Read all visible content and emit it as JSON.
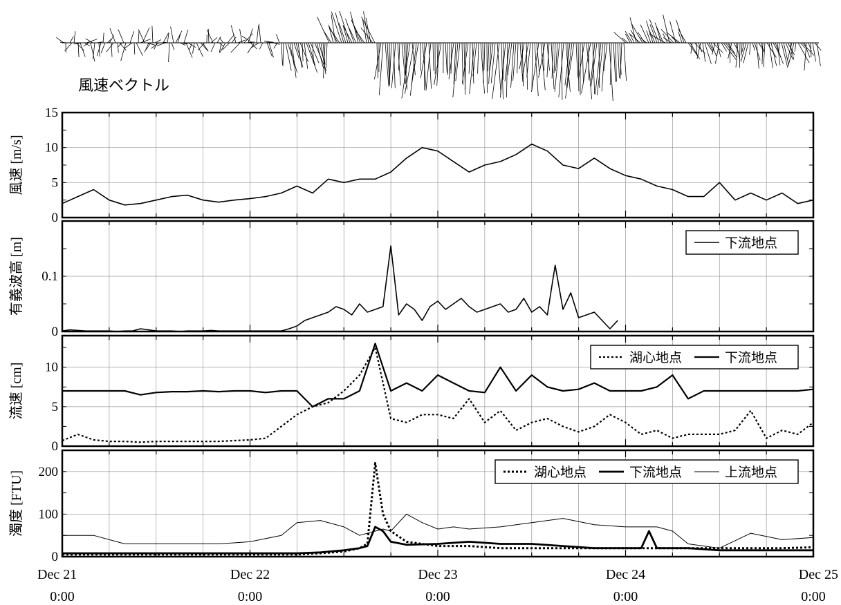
{
  "vector_label": "風速ベクトル",
  "x_ticks": [
    {
      "date": "Dec 21",
      "time": "0:00"
    },
    {
      "date": "Dec 22",
      "time": "0:00"
    },
    {
      "date": "Dec 23",
      "time": "0:00"
    },
    {
      "date": "Dec 24",
      "time": "0:00"
    },
    {
      "date": "Dec 25",
      "time": "0:00"
    }
  ],
  "chart_data": [
    {
      "type": "line",
      "ylabel": "風速 [m/s]",
      "ylim": [
        0,
        15
      ],
      "yticks": [
        0,
        5,
        10,
        15
      ],
      "xlim": [
        0,
        96
      ],
      "grid": true,
      "legend": null,
      "series": [
        {
          "name": "",
          "style": "solid",
          "width": 1.6,
          "x": [
            0,
            2,
            4,
            6,
            8,
            10,
            12,
            14,
            16,
            18,
            20,
            22,
            24,
            26,
            28,
            30,
            32,
            34,
            36,
            38,
            40,
            42,
            44,
            46,
            48,
            50,
            52,
            54,
            56,
            58,
            60,
            62,
            64,
            66,
            68,
            70,
            72,
            74,
            76,
            78,
            80,
            82,
            84,
            86,
            88,
            90,
            92,
            94,
            96
          ],
          "y": [
            2,
            3,
            4,
            2.5,
            1.8,
            2,
            2.5,
            3,
            3.2,
            2.5,
            2.2,
            2.5,
            2.7,
            3,
            3.5,
            4.5,
            3.5,
            5.5,
            5,
            5.5,
            5.5,
            6.5,
            8.5,
            10,
            9.5,
            8,
            6.5,
            7.5,
            8,
            9,
            10.5,
            9.5,
            7.5,
            7,
            8.5,
            7,
            6,
            5.5,
            4.5,
            4,
            3,
            3,
            5,
            2.5,
            3.5,
            2.5,
            3.5,
            2,
            2.5
          ]
        }
      ]
    },
    {
      "type": "line",
      "ylabel": "有義波高 [m]",
      "ylim": [
        0,
        0.2
      ],
      "yticks": [
        0,
        0.1
      ],
      "yticklabels": [
        "0",
        "0.1"
      ],
      "xlim": [
        0,
        96
      ],
      "grid": true,
      "legend": "top-right",
      "series": [
        {
          "name": "下流地点",
          "style": "solid",
          "width": 1.6,
          "x": [
            0,
            1,
            2,
            3,
            4,
            5,
            6,
            7,
            8,
            9,
            10,
            11,
            12,
            13,
            14,
            15,
            16,
            17,
            18,
            19,
            20,
            21,
            22,
            23,
            24,
            25,
            26,
            27,
            28,
            29,
            30,
            31,
            32,
            33,
            34,
            35,
            36,
            37,
            38,
            39,
            40,
            41,
            42,
            43,
            44,
            45,
            46,
            47,
            48,
            49,
            50,
            51,
            52,
            53,
            54,
            55,
            56,
            57,
            58,
            59,
            60,
            61,
            62,
            63,
            64,
            65,
            66,
            67,
            68,
            69,
            70,
            71
          ],
          "y": [
            0.001,
            0.003,
            0.002,
            0.001,
            0.001,
            0.001,
            0.001,
            0,
            0.001,
            0.001,
            0.005,
            0.003,
            0.001,
            0.001,
            0.001,
            0,
            0.001,
            0.001,
            0.001,
            0.002,
            0.001,
            0.001,
            0.001,
            0.001,
            0.001,
            0.001,
            0.001,
            0.001,
            0.001,
            0.005,
            0.01,
            0.02,
            0.025,
            0.03,
            0.035,
            0.045,
            0.04,
            0.03,
            0.05,
            0.035,
            0.04,
            0.045,
            0.155,
            0.03,
            0.05,
            0.04,
            0.02,
            0.045,
            0.055,
            0.04,
            0.05,
            0.06,
            0.045,
            0.035,
            0.04,
            0.045,
            0.05,
            0.035,
            0.04,
            0.06,
            0.035,
            0.045,
            0.03,
            0.12,
            0.04,
            0.07,
            0.025,
            0.03,
            0.035,
            0.02,
            0.005,
            0.02
          ]
        }
      ]
    },
    {
      "type": "line",
      "ylabel": "流速 [cm]",
      "ylim": [
        0,
        14
      ],
      "yticks": [
        0,
        5,
        10
      ],
      "xlim": [
        0,
        96
      ],
      "grid": true,
      "legend": "top-right",
      "series": [
        {
          "name": "湖心地点",
          "style": "dotted",
          "width": 2.2,
          "x": [
            0,
            2,
            4,
            6,
            8,
            10,
            12,
            14,
            16,
            18,
            20,
            22,
            24,
            26,
            28,
            30,
            32,
            34,
            36,
            38,
            40,
            42,
            44,
            46,
            48,
            50,
            52,
            54,
            56,
            58,
            60,
            62,
            64,
            66,
            68,
            70,
            72,
            74,
            76,
            78,
            80,
            82,
            84,
            86,
            88,
            90,
            92,
            94,
            96
          ],
          "y": [
            0.7,
            1.5,
            0.8,
            0.6,
            0.6,
            0.5,
            0.6,
            0.6,
            0.6,
            0.6,
            0.6,
            0.7,
            0.8,
            1,
            2.5,
            4,
            5,
            5.5,
            7,
            9,
            12.5,
            3.5,
            3,
            4,
            4,
            3.5,
            6,
            3,
            4.5,
            2,
            3,
            3.5,
            2.5,
            1.8,
            2.5,
            4,
            3,
            1.5,
            2,
            1,
            1.5,
            1.5,
            1.5,
            2,
            4.5,
            1,
            2,
            1.5,
            3
          ]
        },
        {
          "name": "下流地点",
          "style": "solid",
          "width": 2.2,
          "x": [
            0,
            2,
            4,
            6,
            8,
            10,
            12,
            14,
            16,
            18,
            20,
            22,
            24,
            26,
            28,
            30,
            32,
            34,
            36,
            38,
            40,
            42,
            44,
            46,
            48,
            50,
            52,
            54,
            56,
            58,
            60,
            62,
            64,
            66,
            68,
            70,
            72,
            74,
            76,
            78,
            80,
            82,
            84,
            86,
            88,
            90,
            92,
            94,
            96
          ],
          "y": [
            7,
            7,
            7,
            7,
            7,
            6.5,
            6.8,
            6.9,
            6.9,
            7,
            6.9,
            7,
            7,
            6.8,
            7,
            7,
            5,
            6,
            6,
            7,
            13,
            7,
            8,
            7,
            9,
            8,
            7,
            6.8,
            10,
            7,
            9,
            7.5,
            7,
            7.2,
            8,
            7,
            7,
            7,
            7.5,
            9,
            6,
            7,
            7,
            7,
            7,
            7,
            7,
            7,
            7.2
          ]
        }
      ]
    },
    {
      "type": "line",
      "ylabel": "濁度 [FTU]",
      "ylim": [
        0,
        250
      ],
      "yticks": [
        0,
        100,
        200
      ],
      "xlim": [
        0,
        96
      ],
      "grid": true,
      "legend": "top-right",
      "series": [
        {
          "name": "湖心地点",
          "style": "dotted",
          "width": 3,
          "x": [
            0,
            4,
            8,
            12,
            16,
            20,
            24,
            28,
            30,
            33,
            36,
            38,
            39,
            40,
            41,
            42,
            44,
            48,
            52,
            56,
            60,
            64,
            68,
            72,
            76,
            80,
            84,
            88,
            92,
            96
          ],
          "y": [
            5,
            5,
            5,
            5,
            5,
            5,
            5,
            5,
            5,
            8,
            12,
            20,
            30,
            220,
            100,
            60,
            35,
            25,
            25,
            20,
            20,
            20,
            20,
            20,
            20,
            20,
            20,
            20,
            20,
            22
          ]
        },
        {
          "name": "下流地点",
          "style": "solid",
          "width": 2.8,
          "x": [
            0,
            4,
            8,
            12,
            16,
            20,
            24,
            28,
            30,
            33,
            36,
            38,
            39,
            40,
            41,
            42,
            44,
            48,
            52,
            56,
            60,
            64,
            68,
            72,
            74,
            75,
            76,
            80,
            84,
            88,
            92,
            96
          ],
          "y": [
            8,
            8,
            8,
            8,
            8,
            8,
            8,
            8,
            8,
            10,
            15,
            20,
            25,
            70,
            60,
            35,
            28,
            30,
            35,
            30,
            30,
            25,
            20,
            20,
            20,
            60,
            20,
            20,
            15,
            15,
            15,
            15
          ]
        },
        {
          "name": "上流地点",
          "style": "solid",
          "width": 1,
          "x": [
            0,
            4,
            8,
            12,
            16,
            20,
            24,
            28,
            30,
            33,
            36,
            38,
            40,
            41,
            42,
            44,
            46,
            48,
            50,
            52,
            56,
            60,
            64,
            68,
            72,
            74,
            75,
            76,
            78,
            80,
            84,
            88,
            92,
            96
          ],
          "y": [
            50,
            50,
            30,
            30,
            30,
            30,
            35,
            50,
            80,
            85,
            70,
            50,
            60,
            65,
            60,
            100,
            80,
            65,
            70,
            65,
            70,
            80,
            90,
            75,
            70,
            70,
            70,
            70,
            60,
            30,
            20,
            55,
            40,
            45
          ]
        }
      ]
    }
  ]
}
